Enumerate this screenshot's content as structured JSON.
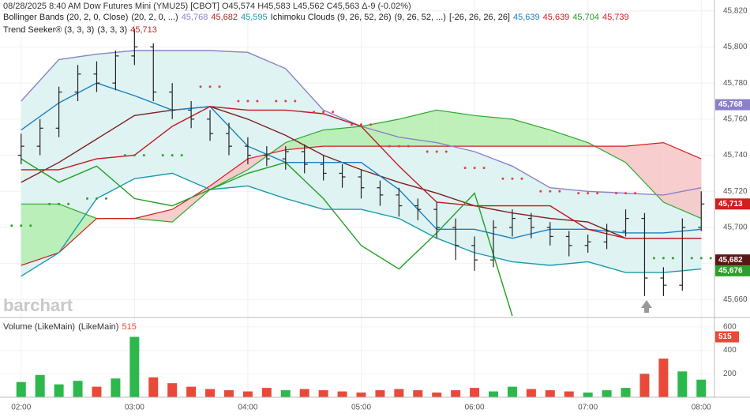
{
  "chart_data": [
    {
      "type": "ohlc",
      "title": "08/28/2025  8:40 AM Dow Futures Mini (YMU25) [CBOT] O45,574 H45,583 L45,562 C45,563 Δ-9 (-0.02%)",
      "legend_rows": [
        [
          {
            "text": "Bollinger Bands (20, 2, 0, Close)",
            "color": "#222222"
          },
          {
            "text": "(20, 2, 0, ...)",
            "color": "#222222"
          },
          {
            "text": "45,768",
            "color": "#8b80c9"
          },
          {
            "text": "45,682",
            "color": "#b02a2a"
          },
          {
            "text": "45,595",
            "color": "#1a9aaa"
          },
          {
            "text": "Ichimoku Clouds (9, 26, 52, 26)",
            "color": "#222222"
          },
          {
            "text": "(9, 26, 52, ...)",
            "color": "#222222"
          },
          {
            "text": "[-26, 26, 26, 26]",
            "color": "#222222"
          },
          {
            "text": "45,639",
            "color": "#1a7fc0"
          },
          {
            "text": "45,639",
            "color": "#d02020"
          },
          {
            "text": "45,704",
            "color": "#22a022"
          },
          {
            "text": "45,739",
            "color": "#d02020"
          }
        ],
        [
          {
            "text": "Trend Seeker® (3, 3, 3)",
            "color": "#222222"
          },
          {
            "text": "(3, 3, 3)",
            "color": "#222222"
          },
          {
            "text": "45,713",
            "color": "#d02020"
          }
        ]
      ],
      "watermark": "barchart",
      "x": [
        120,
        130,
        140,
        150,
        160,
        170,
        180,
        190,
        200,
        210,
        220,
        230,
        240,
        250,
        260,
        270,
        280,
        290,
        300,
        310,
        320,
        330,
        340,
        350,
        360,
        370,
        380,
        390,
        400,
        410,
        420,
        430,
        440,
        450,
        460,
        470,
        480
      ],
      "open": [
        45740,
        45745,
        45755,
        45775,
        45785,
        45780,
        45795,
        45800,
        45775,
        45765,
        45760,
        45752,
        45745,
        45740,
        45738,
        45742,
        45735,
        45730,
        45728,
        45722,
        45718,
        45712,
        45710,
        45700,
        45690,
        45682,
        45700,
        45705,
        45700,
        45695,
        45690,
        45692,
        45698,
        45705,
        45672,
        45668,
        45700
      ],
      "high": [
        45752,
        45760,
        45778,
        45790,
        45792,
        45798,
        45810,
        45802,
        45780,
        45770,
        45765,
        45758,
        45750,
        45745,
        45745,
        45746,
        45740,
        45735,
        45732,
        45726,
        45722,
        45716,
        45714,
        45705,
        45695,
        45704,
        45710,
        45708,
        45703,
        45698,
        45696,
        45702,
        45710,
        45708,
        45678,
        45705,
        45720
      ],
      "low": [
        45735,
        45740,
        45750,
        45770,
        45775,
        45776,
        45790,
        45770,
        45760,
        45755,
        45748,
        45740,
        45735,
        45734,
        45732,
        45730,
        45726,
        45722,
        45716,
        45712,
        45706,
        45704,
        45694,
        45682,
        45676,
        45678,
        45695,
        45694,
        45690,
        45684,
        45686,
        45688,
        45695,
        45662,
        45662,
        45665,
        45698
      ],
      "close": [
        45745,
        45755,
        45775,
        45785,
        45780,
        45795,
        45800,
        45775,
        45765,
        45760,
        45752,
        45745,
        45740,
        45738,
        45742,
        45735,
        45730,
        45728,
        45722,
        45718,
        45712,
        45710,
        45700,
        45690,
        45682,
        45700,
        45705,
        45700,
        45695,
        45690,
        45692,
        45698,
        45705,
        45672,
        45668,
        45700,
        45713
      ],
      "bar_color": "#222222",
      "xlim": [
        113,
        487
      ],
      "xticks": [
        {
          "value": 120,
          "label": "02:00"
        },
        {
          "value": 180,
          "label": "03:00"
        },
        {
          "value": 240,
          "label": "04:00"
        },
        {
          "value": 300,
          "label": "05:00"
        },
        {
          "value": 360,
          "label": "06:00"
        },
        {
          "value": 420,
          "label": "07:00"
        },
        {
          "value": 480,
          "label": "08:00"
        }
      ],
      "ylim": [
        45651,
        45826
      ],
      "yticks": [
        {
          "value": 45660,
          "label": "45,660"
        },
        {
          "value": 45680,
          "label": "45,680"
        },
        {
          "value": 45700,
          "label": "45,700"
        },
        {
          "value": 45720,
          "label": "45,720"
        },
        {
          "value": 45740,
          "label": "45,740"
        },
        {
          "value": 45760,
          "label": "45,760"
        },
        {
          "value": 45780,
          "label": "45,780"
        },
        {
          "value": 45800,
          "label": "45,800"
        },
        {
          "value": 45820,
          "label": "45,820"
        }
      ],
      "grid": true,
      "indicator_x": [
        120,
        140,
        160,
        180,
        200,
        220,
        240,
        260,
        280,
        300,
        320,
        340,
        360,
        380,
        400,
        420,
        440,
        460,
        480
      ],
      "bollinger": {
        "upper": [
          45770,
          45793,
          45796,
          45798,
          45798,
          45798,
          45797,
          45788,
          45765,
          45756,
          45750,
          45747,
          45742,
          45734,
          45722,
          45720,
          45719,
          45718,
          45722
        ],
        "middle": [
          45725,
          45736,
          45749,
          45762,
          45765,
          45767,
          45760,
          45751,
          45740,
          45732,
          45725,
          45719,
          45712,
          45708,
          45705,
          45703,
          45694,
          45694,
          45694
        ],
        "lower": [
          45673,
          45686,
          45716,
          45727,
          45730,
          45721,
          45723,
          45716,
          45710,
          45710,
          45705,
          45694,
          45686,
          45681,
          45679,
          45681,
          45675,
          45675,
          45677
        ],
        "upper_color": "#8b80c9",
        "middle_color": "#7d1f1f",
        "lower_color": "#1a9aaa",
        "fill": "#dff3f3"
      },
      "ichimoku": {
        "conversion": [
          45754,
          45769,
          45780,
          45773,
          45765,
          45767,
          45745,
          45736,
          45736,
          45736,
          45721,
          45699,
          45699,
          45694,
          45699,
          45699,
          45697,
          45697,
          45699
        ],
        "base": [
          45732,
          45732,
          45738,
          45740,
          45756,
          45767,
          45765,
          45765,
          45763,
          45756,
          45734,
          45714,
          45712,
          45712,
          45712,
          45699,
          45694,
          45694,
          45694
        ],
        "lagging": [
          45738,
          45725,
          45734,
          45716,
          45712,
          45721,
          45730,
          45736,
          45716,
          45690,
          45677,
          45697,
          45719,
          45651,
          null,
          null,
          null,
          null,
          null
        ],
        "span_a": [
          45713,
          45713,
          45705,
          45705,
          45703,
          45721,
          45732,
          45747,
          45754,
          45756,
          45760,
          45765,
          45762,
          45760,
          45754,
          45747,
          45736,
          45714,
          45705
        ],
        "span_b": [
          45679,
          45686,
          45705,
          45705,
          45710,
          45723,
          45738,
          45743,
          45745,
          45745,
          45745,
          45745,
          45745,
          45745,
          45745,
          45745,
          45745,
          45747,
          45738
        ],
        "conversion_color": "#1a7fc0",
        "base_color": "#c0191f",
        "lagging_color": "#22a022",
        "span_a_color": "#2ea82e",
        "span_b_color": "#d02020",
        "up_fill": "#b5edae",
        "down_fill": "#f7c4c4"
      },
      "trend_seeker": {
        "values": [
          45701,
          45713,
          45716,
          45740,
          45740,
          45778,
          45770,
          45770,
          45764,
          45757,
          45745,
          45742,
          45733,
          45727,
          45720,
          45719,
          45719,
          45683,
          45683
        ],
        "colors": [
          "#2ca02c",
          "#2ca02c",
          "#2ca02c",
          "#2ca02c",
          "#2ca02c",
          "#e04040",
          "#e04040",
          "#e04040",
          "#e04040",
          "#e04040",
          "#e04040",
          "#e04040",
          "#e04040",
          "#e04040",
          "#e04040",
          "#e04040",
          "#e04040",
          "#2ca02c",
          "#2ca02c"
        ]
      },
      "price_badges": [
        {
          "value": 45768,
          "label": "45,768",
          "color": "#8b80c9"
        },
        {
          "value": 45713,
          "label": "45,713",
          "color": "#d02020"
        },
        {
          "value": 45682,
          "label": "45,682",
          "color": "#5a1515"
        },
        {
          "value": 45676,
          "label": "45,676",
          "color": "#2ca02c"
        }
      ]
    },
    {
      "type": "bar",
      "title": "Volume (LikeMain)",
      "subtitle": "(LikeMain)",
      "current_value": 515,
      "values": [
        130,
        190,
        110,
        140,
        90,
        160,
        515,
        170,
        120,
        90,
        70,
        60,
        50,
        80,
        60,
        70,
        60,
        50,
        40,
        60,
        70,
        60,
        40,
        60,
        80,
        50,
        90,
        70,
        60,
        50,
        40,
        60,
        80,
        200,
        330,
        220,
        150
      ],
      "up_color": "#2db84d",
      "down_color": "#e84a3a",
      "flat_color": "#2050b0",
      "badge_color": "#e84a3a",
      "ylim": [
        0,
        660
      ],
      "yticks": [
        200,
        400,
        600
      ]
    }
  ]
}
